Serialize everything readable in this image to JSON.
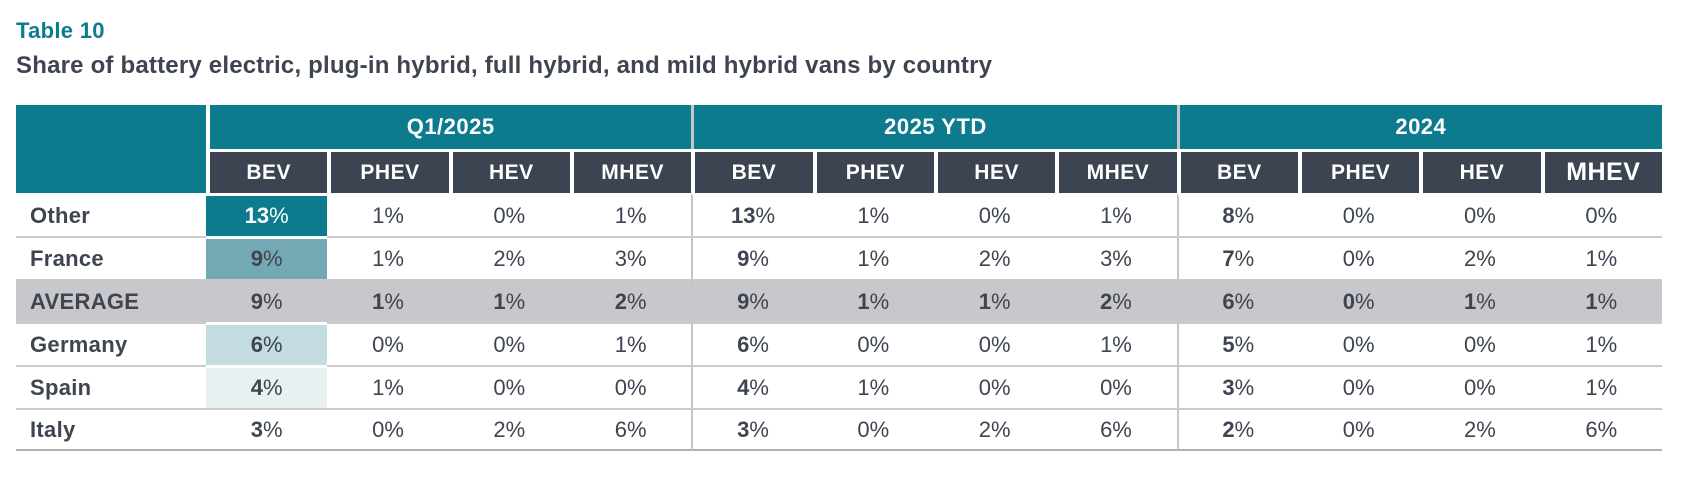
{
  "caption": {
    "number": "Table 10",
    "title": "Share of battery electric, plug-in hybrid, full hybrid, and mild hybrid vans by country"
  },
  "palette": {
    "teal_header": "#0b7b8d",
    "dark_header": "#3b4450",
    "body_text": "#3e4551",
    "average_row_bg": "#c8c7cb",
    "row_divider": "#cbcbcb",
    "group_divider": "#c6c6c6",
    "bev_scale_other": "#0b7b8d",
    "bev_scale_france": "#73a9b4",
    "bev_scale_germany": "#c3dce2",
    "bev_scale_spain": "#e7f1f2"
  },
  "chart_data": {
    "type": "table",
    "title": "Table 10",
    "subtitle": "Share of battery electric, plug-in hybrid, full hybrid, and mild hybrid vans by country",
    "unit": "%",
    "column_groups": [
      "Q1/2025",
      "2025 YTD",
      "2024"
    ],
    "sub_columns": [
      "BEV",
      "PHEV",
      "HEV",
      "MHEV"
    ],
    "rows": [
      {
        "label": "Other",
        "cells": [
          "13%",
          "1%",
          "0%",
          "1%",
          "13%",
          "1%",
          "0%",
          "1%",
          "8%",
          "0%",
          "0%",
          "0%"
        ],
        "bev_bg": "#0b7b8d",
        "bev_text": "#ffffff"
      },
      {
        "label": "France",
        "cells": [
          "9%",
          "1%",
          "2%",
          "3%",
          "9%",
          "1%",
          "2%",
          "3%",
          "7%",
          "0%",
          "2%",
          "1%"
        ],
        "bev_bg": "#73a9b4"
      },
      {
        "label": "AVERAGE",
        "cells": [
          "9%",
          "1%",
          "1%",
          "2%",
          "9%",
          "1%",
          "1%",
          "2%",
          "6%",
          "0%",
          "1%",
          "1%"
        ],
        "row_bg": "#c8c7cb",
        "bold_all": true
      },
      {
        "label": "Germany",
        "cells": [
          "6%",
          "0%",
          "0%",
          "1%",
          "6%",
          "0%",
          "0%",
          "1%",
          "5%",
          "0%",
          "0%",
          "1%"
        ],
        "bev_bg": "#c3dce2"
      },
      {
        "label": "Spain",
        "cells": [
          "4%",
          "1%",
          "0%",
          "0%",
          "4%",
          "1%",
          "0%",
          "0%",
          "3%",
          "0%",
          "0%",
          "1%"
        ],
        "bev_bg": "#e7f1f2"
      },
      {
        "label": "Italy",
        "cells": [
          "3%",
          "0%",
          "2%",
          "6%",
          "3%",
          "0%",
          "2%",
          "6%",
          "2%",
          "0%",
          "2%",
          "6%"
        ]
      }
    ]
  }
}
